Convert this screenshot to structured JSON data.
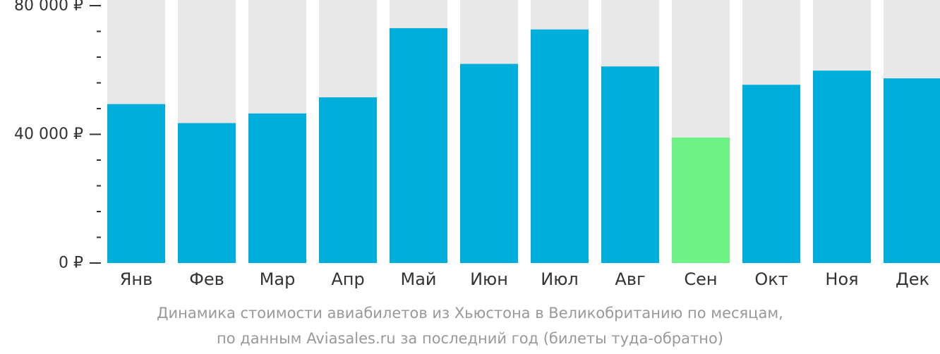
{
  "chart_data": {
    "type": "bar",
    "categories": [
      "Янв",
      "Фев",
      "Мар",
      "Апр",
      "Май",
      "Июн",
      "Июл",
      "Авг",
      "Сен",
      "Окт",
      "Ноя",
      "Дек"
    ],
    "values": [
      49400,
      43500,
      46500,
      51500,
      73000,
      61900,
      72600,
      61100,
      39000,
      55400,
      59800,
      57400
    ],
    "ylim": [
      0,
      80000
    ],
    "yticks": [
      {
        "value": 0,
        "label": "0 ₽"
      },
      {
        "value": 40000,
        "label": "40 000 ₽"
      },
      {
        "value": 80000,
        "label": "80 000 ₽"
      }
    ],
    "minor_tick_step": 8000,
    "grid": false,
    "highlight_index": 8,
    "colors": {
      "bar": "#00aedb",
      "highlight": "#6ff285",
      "background_bar": "#e8e8e8",
      "axis": "#333333",
      "caption": "#999999"
    }
  },
  "caption": {
    "line1": "Динамика стоимости авиабилетов из Хьюстона в Великобританию по месяцам,",
    "line2": "по данным Aviasales.ru за последний год (билеты туда-обратно)"
  }
}
